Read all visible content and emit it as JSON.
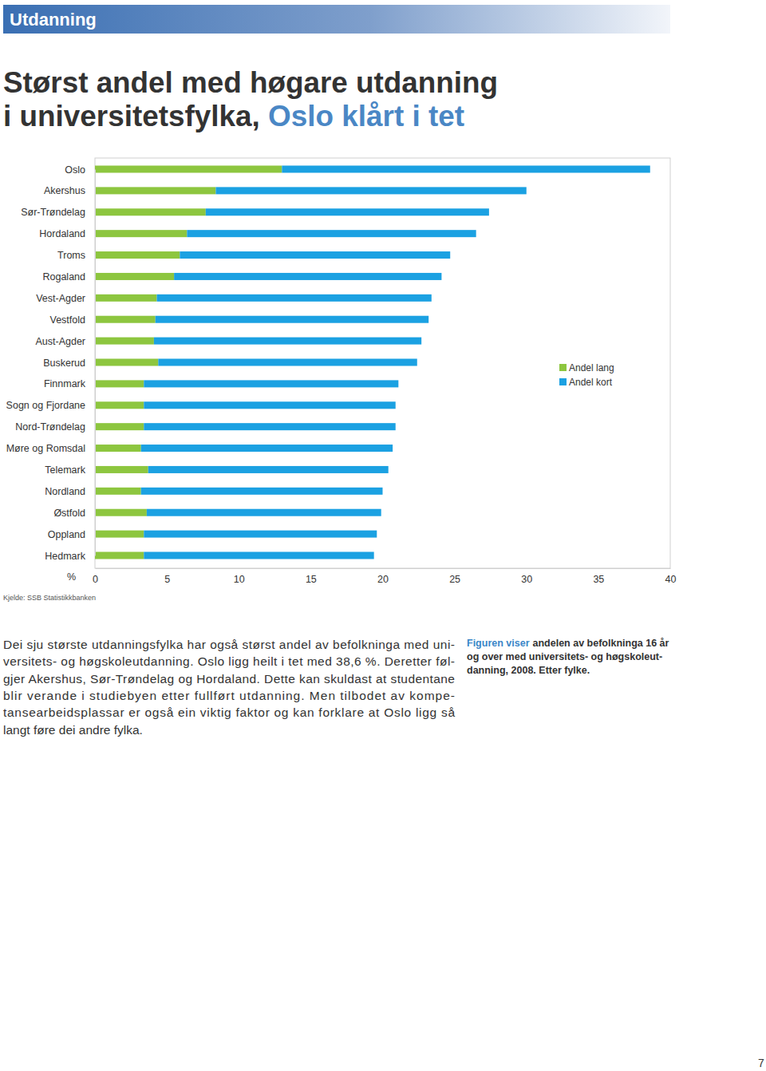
{
  "section": "Utdanning",
  "headline": {
    "line1": "Størst andel med høgare utdanning",
    "line2": "i universitetsfylka,",
    "highlight": "Oslo klårt i tet"
  },
  "chart_data": {
    "type": "bar",
    "orientation": "horizontal",
    "stacked": true,
    "legend": "right",
    "grid": false,
    "xlabel": "%",
    "source": "Kjelde: SSB Statistikkbanken",
    "categories": [
      "Oslo",
      "Akershus",
      "Sør-Trøndelag",
      "Hordaland",
      "Troms",
      "Rogaland",
      "Vest-Agder",
      "Vestfold",
      "Aust-Agder",
      "Buskerud",
      "Finnmark",
      "Sogn og Fjordane",
      "Nord-Trøndelag",
      "Møre og Romsdal",
      "Telemark",
      "Nordland",
      "Østfold",
      "Oppland",
      "Hedmark"
    ],
    "series": [
      {
        "name": "Andel lang",
        "color": "#8dc63f",
        "values": [
          13.0,
          8.4,
          7.7,
          6.4,
          5.9,
          5.5,
          4.3,
          4.2,
          4.1,
          4.4,
          3.4,
          3.4,
          3.4,
          3.2,
          3.7,
          3.2,
          3.6,
          3.4,
          3.4
        ]
      },
      {
        "name": "Andel kort",
        "color": "#1ba1e2",
        "values": [
          25.6,
          21.6,
          19.7,
          20.1,
          18.8,
          18.6,
          19.1,
          19.0,
          18.6,
          18.0,
          17.7,
          17.5,
          17.5,
          17.5,
          16.7,
          16.8,
          16.3,
          16.2,
          16.0
        ]
      }
    ],
    "xlim": [
      0,
      40
    ],
    "xticks": [
      0,
      5,
      10,
      15,
      20,
      25,
      30,
      35,
      40
    ]
  },
  "body": [
    "Dei sju største utdanningsfylka har også størst andel av befolkninga med uni-",
    "versitets- og høgskoleutdanning. Oslo ligg heilt i tet med 38,6 %. Deretter føl-",
    "gjer Akershus, Sør-Trøndelag og Hordaland. Dette kan skuldast at studentane",
    "blir verande i studiebyen etter fullført utdanning. Men tilbodet av kompe-",
    "tansearbeidsplassar er også ein viktig faktor og kan forklare at Oslo ligg så",
    "langt føre dei andre fylka."
  ],
  "caption": {
    "lead": "Figuren viser",
    "lines": [
      "andelen av befolkninga 16 år",
      "og over med universitets- og høgskoleut-",
      "danning, 2008. Etter fylke."
    ]
  },
  "page_number": "7"
}
